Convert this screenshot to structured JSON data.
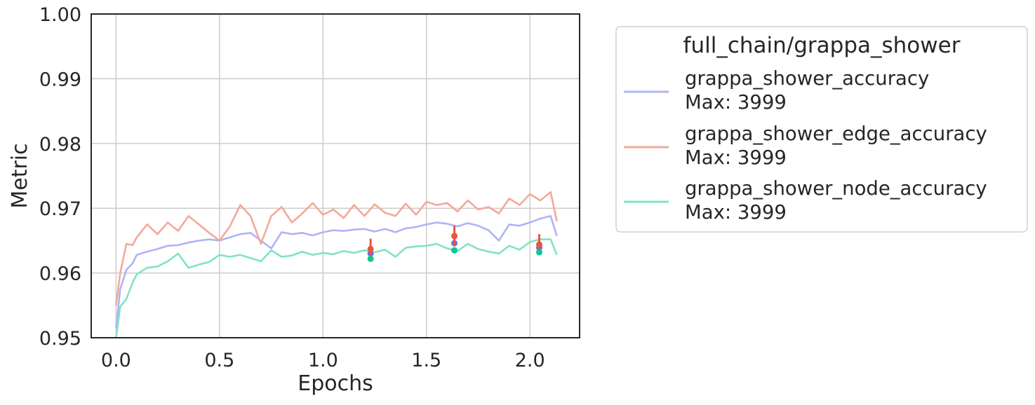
{
  "chart_data": {
    "type": "line",
    "xlabel": "Epochs",
    "ylabel": "Metric",
    "xlim": [
      -0.12,
      2.24
    ],
    "ylim": [
      0.95,
      1.0
    ],
    "xticks": [
      0.0,
      0.5,
      1.0,
      1.5,
      2.0
    ],
    "xtick_labels": [
      "0.0",
      "0.5",
      "1.0",
      "1.5",
      "2.0"
    ],
    "yticks": [
      0.95,
      0.96,
      0.97,
      0.98,
      0.99,
      1.0
    ],
    "ytick_labels": [
      "0.95",
      "0.96",
      "0.97",
      "0.98",
      "0.99",
      "1.00"
    ],
    "grid": true,
    "legend": {
      "title": "full_chain/grappa_shower",
      "placement": "outside-right"
    },
    "series": [
      {
        "name": "grappa_shower_accuracy",
        "legend_sub": "Max: 3999",
        "color": "#b0b3f8",
        "marker_color": "#6b6cf0",
        "x": [
          0.0,
          0.02,
          0.05,
          0.08,
          0.1,
          0.15,
          0.2,
          0.25,
          0.3,
          0.35,
          0.4,
          0.45,
          0.5,
          0.55,
          0.6,
          0.65,
          0.7,
          0.75,
          0.8,
          0.85,
          0.9,
          0.95,
          1.0,
          1.05,
          1.1,
          1.15,
          1.2,
          1.25,
          1.3,
          1.35,
          1.4,
          1.45,
          1.5,
          1.55,
          1.6,
          1.65,
          1.7,
          1.75,
          1.8,
          1.85,
          1.9,
          1.95,
          2.0,
          2.05,
          2.1,
          2.13
        ],
        "y": [
          0.9515,
          0.9575,
          0.9605,
          0.9615,
          0.9628,
          0.9633,
          0.9637,
          0.9642,
          0.9643,
          0.9647,
          0.965,
          0.9652,
          0.965,
          0.9655,
          0.966,
          0.9662,
          0.965,
          0.9638,
          0.9663,
          0.966,
          0.9662,
          0.9658,
          0.9663,
          0.9666,
          0.9665,
          0.9667,
          0.9668,
          0.9664,
          0.9668,
          0.9663,
          0.9669,
          0.9671,
          0.9675,
          0.9678,
          0.9676,
          0.9672,
          0.9677,
          0.9673,
          0.9666,
          0.965,
          0.9675,
          0.9673,
          0.9678,
          0.9684,
          0.9688,
          0.9657
        ],
        "markers": [
          {
            "x": 1.23,
            "y": 0.963,
            "err": 0.0004
          },
          {
            "x": 1.635,
            "y": 0.9646,
            "err": 0.0004
          },
          {
            "x": 2.045,
            "y": 0.9639,
            "err": 0.0004
          }
        ]
      },
      {
        "name": "grappa_shower_edge_accuracy",
        "legend_sub": "Max: 3999",
        "color": "#f4a89a",
        "marker_color": "#e8553e",
        "x": [
          0.0,
          0.02,
          0.05,
          0.08,
          0.1,
          0.15,
          0.2,
          0.25,
          0.3,
          0.35,
          0.4,
          0.45,
          0.5,
          0.55,
          0.6,
          0.65,
          0.7,
          0.75,
          0.8,
          0.85,
          0.9,
          0.95,
          1.0,
          1.05,
          1.1,
          1.15,
          1.2,
          1.25,
          1.3,
          1.35,
          1.4,
          1.45,
          1.5,
          1.55,
          1.6,
          1.65,
          1.7,
          1.75,
          1.8,
          1.85,
          1.9,
          1.95,
          2.0,
          2.05,
          2.1,
          2.13
        ],
        "y": [
          0.955,
          0.96,
          0.9645,
          0.9643,
          0.9655,
          0.9675,
          0.966,
          0.9678,
          0.9665,
          0.9688,
          0.9675,
          0.9662,
          0.965,
          0.9672,
          0.9705,
          0.9688,
          0.9645,
          0.9688,
          0.9702,
          0.9678,
          0.9692,
          0.9708,
          0.969,
          0.9698,
          0.9685,
          0.9705,
          0.9688,
          0.9706,
          0.9693,
          0.9688,
          0.9707,
          0.969,
          0.971,
          0.9705,
          0.9708,
          0.9695,
          0.9712,
          0.9698,
          0.9702,
          0.9692,
          0.9715,
          0.9705,
          0.9722,
          0.9712,
          0.9725,
          0.968
        ],
        "markers": [
          {
            "x": 1.23,
            "y": 0.9637,
            "err": 0.0016
          },
          {
            "x": 1.635,
            "y": 0.9657,
            "err": 0.0016
          },
          {
            "x": 2.045,
            "y": 0.9644,
            "err": 0.0016
          }
        ]
      },
      {
        "name": "grappa_shower_node_accuracy",
        "legend_sub": "Max: 3999",
        "color": "#80e3c4",
        "marker_color": "#12c58f",
        "x": [
          0.0,
          0.02,
          0.05,
          0.08,
          0.1,
          0.15,
          0.2,
          0.25,
          0.3,
          0.35,
          0.4,
          0.45,
          0.5,
          0.55,
          0.6,
          0.65,
          0.7,
          0.75,
          0.8,
          0.85,
          0.9,
          0.95,
          1.0,
          1.05,
          1.1,
          1.15,
          1.2,
          1.25,
          1.3,
          1.35,
          1.4,
          1.45,
          1.5,
          1.55,
          1.6,
          1.65,
          1.7,
          1.75,
          1.8,
          1.85,
          1.9,
          1.95,
          2.0,
          2.05,
          2.1,
          2.13
        ],
        "y": [
          0.95,
          0.9548,
          0.956,
          0.9585,
          0.9598,
          0.9608,
          0.961,
          0.9618,
          0.963,
          0.9608,
          0.9613,
          0.9617,
          0.9628,
          0.9625,
          0.9628,
          0.9623,
          0.9618,
          0.9635,
          0.9625,
          0.9627,
          0.9633,
          0.9628,
          0.9631,
          0.9629,
          0.9634,
          0.9631,
          0.9635,
          0.9632,
          0.9636,
          0.9625,
          0.9639,
          0.9641,
          0.9642,
          0.9645,
          0.9638,
          0.9634,
          0.9645,
          0.9637,
          0.9633,
          0.963,
          0.9642,
          0.9636,
          0.9648,
          0.9652,
          0.9652,
          0.9628
        ],
        "markers": [
          {
            "x": 1.23,
            "y": 0.9622,
            "err": 0.0004
          },
          {
            "x": 1.635,
            "y": 0.9635,
            "err": 0.0004
          },
          {
            "x": 2.045,
            "y": 0.9632,
            "err": 0.0004
          }
        ]
      }
    ]
  }
}
